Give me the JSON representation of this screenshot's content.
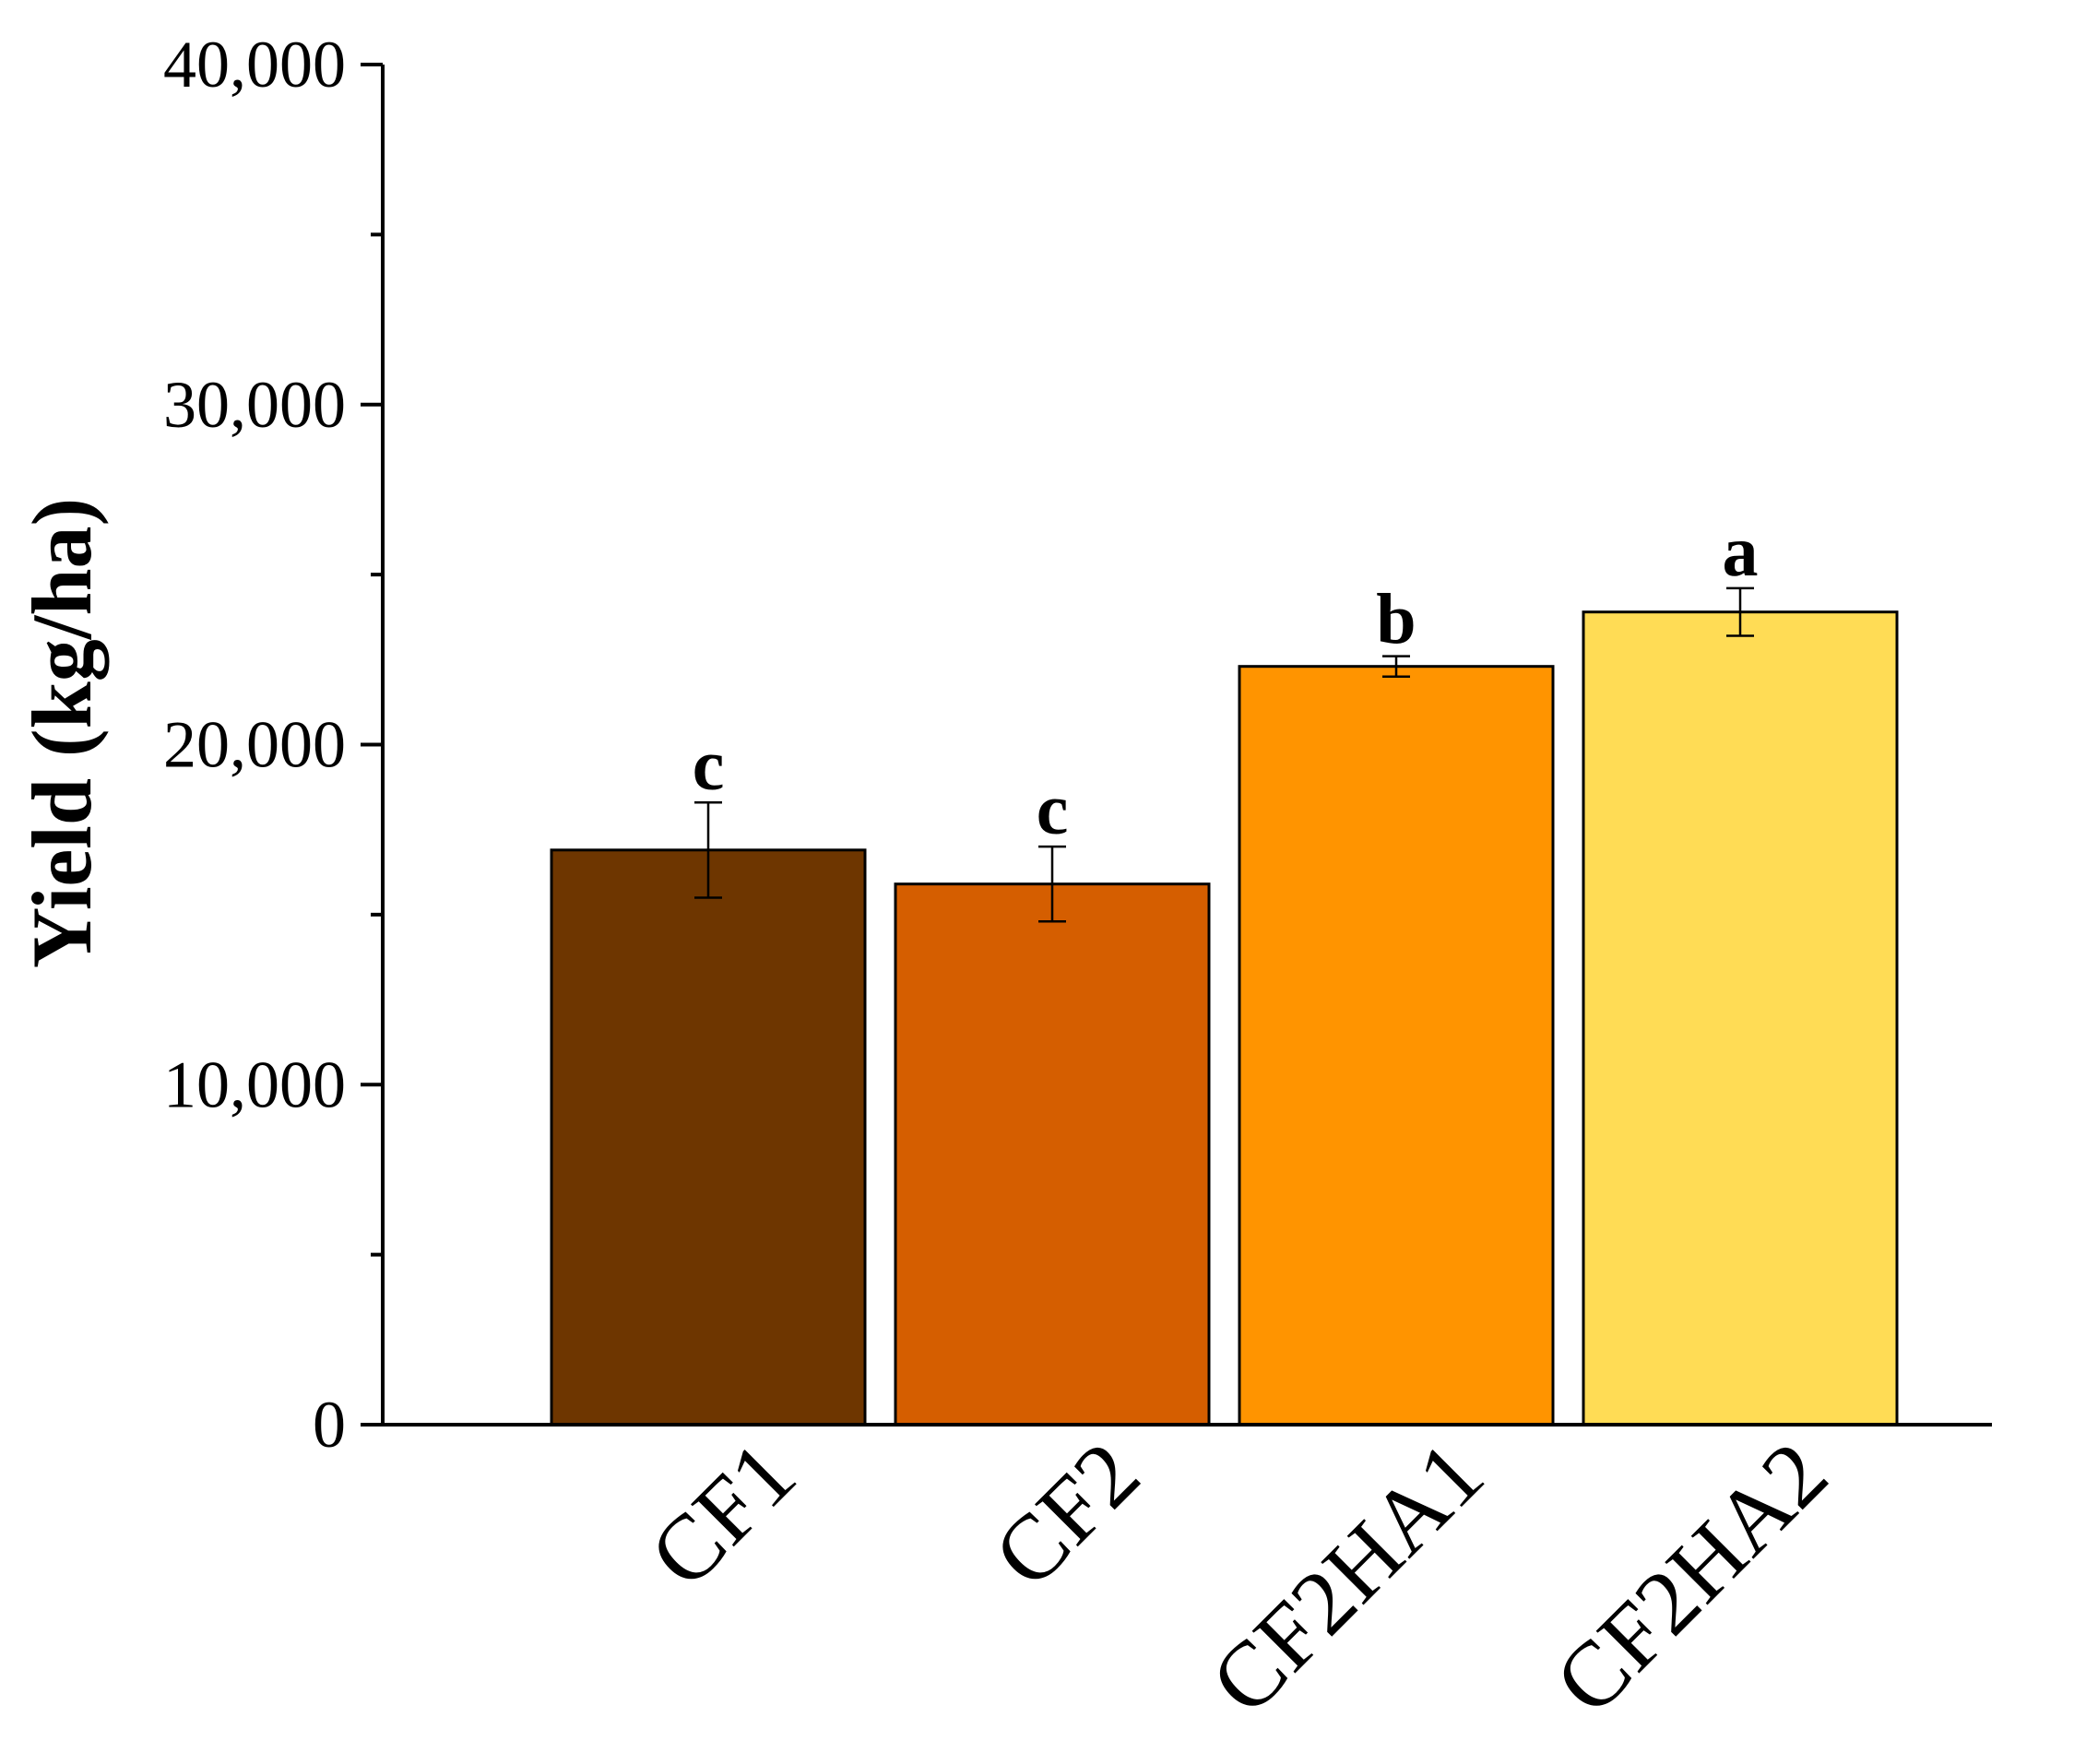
{
  "chart_data": {
    "type": "bar",
    "title": "",
    "xlabel": "",
    "ylabel": "Yield (kg/ha)",
    "ylim": [
      0,
      40000
    ],
    "yticks": [
      0,
      10000,
      20000,
      30000,
      40000
    ],
    "ytick_labels": [
      "0",
      "10,000",
      "20,000",
      "30,000",
      "40,000"
    ],
    "minor_yticks": [
      5000,
      15000,
      25000,
      35000
    ],
    "categories": [
      "CF1",
      "CF2",
      "CF2HA1",
      "CF2HA2"
    ],
    "values": [
      16900,
      15900,
      22300,
      23900
    ],
    "errors": [
      1400,
      1100,
      300,
      700
    ],
    "significance": [
      "c",
      "c",
      "b",
      "a"
    ],
    "colors": [
      "#6e3600",
      "#d55e00",
      "#ff9400",
      "#ffdc55"
    ],
    "grid": false,
    "legend": null
  }
}
